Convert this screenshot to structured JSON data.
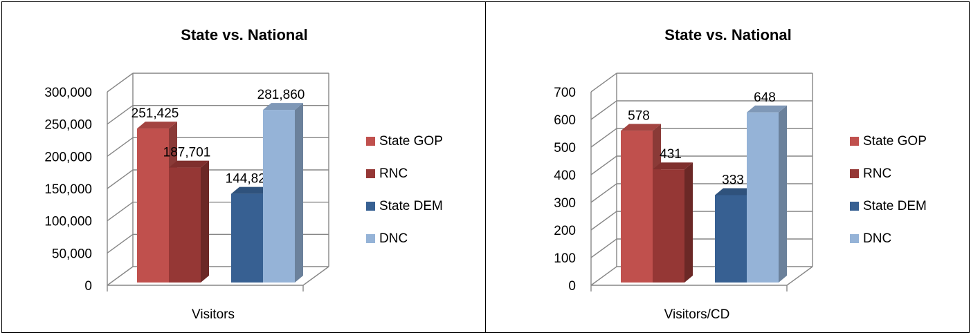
{
  "chart_data": [
    {
      "type": "bar",
      "title": "State vs. National",
      "categories": [
        "Visitors"
      ],
      "series": [
        {
          "name": "State GOP",
          "values": [
            251425
          ],
          "label": "251,425",
          "color": "#C0504D"
        },
        {
          "name": "RNC",
          "values": [
            187701
          ],
          "label": "187,701",
          "color": "#953735"
        },
        {
          "name": "State DEM",
          "values": [
            144820
          ],
          "label": "144,820",
          "color": "#376092"
        },
        {
          "name": "DNC",
          "values": [
            281860
          ],
          "label": "281,860",
          "color": "#95B3D7"
        }
      ],
      "ylim": [
        0,
        300000
      ],
      "ticks": [
        0,
        50000,
        100000,
        150000,
        200000,
        250000,
        300000
      ],
      "tick_labels": [
        "0",
        "50,000",
        "100,000",
        "150,000",
        "200,000",
        "250,000",
        "300,000"
      ],
      "grid": true,
      "legend": "right",
      "style": "3d-clustered-column"
    },
    {
      "type": "bar",
      "title": "State vs. National",
      "categories": [
        "Visitors/CD"
      ],
      "series": [
        {
          "name": "State GOP",
          "values": [
            578
          ],
          "label": "578",
          "color": "#C0504D"
        },
        {
          "name": "RNC",
          "values": [
            431
          ],
          "label": "431",
          "color": "#953735"
        },
        {
          "name": "State DEM",
          "values": [
            333
          ],
          "label": "333",
          "color": "#376092"
        },
        {
          "name": "DNC",
          "values": [
            648
          ],
          "label": "648",
          "color": "#95B3D7"
        }
      ],
      "ylim": [
        0,
        700
      ],
      "ticks": [
        0,
        100,
        200,
        300,
        400,
        500,
        600,
        700
      ],
      "tick_labels": [
        "0",
        "100",
        "200",
        "300",
        "400",
        "500",
        "600",
        "700"
      ],
      "grid": true,
      "legend": "right",
      "style": "3d-clustered-column"
    }
  ],
  "colors": {
    "grid": "#868686",
    "depth_dark_factor": 0.72
  }
}
